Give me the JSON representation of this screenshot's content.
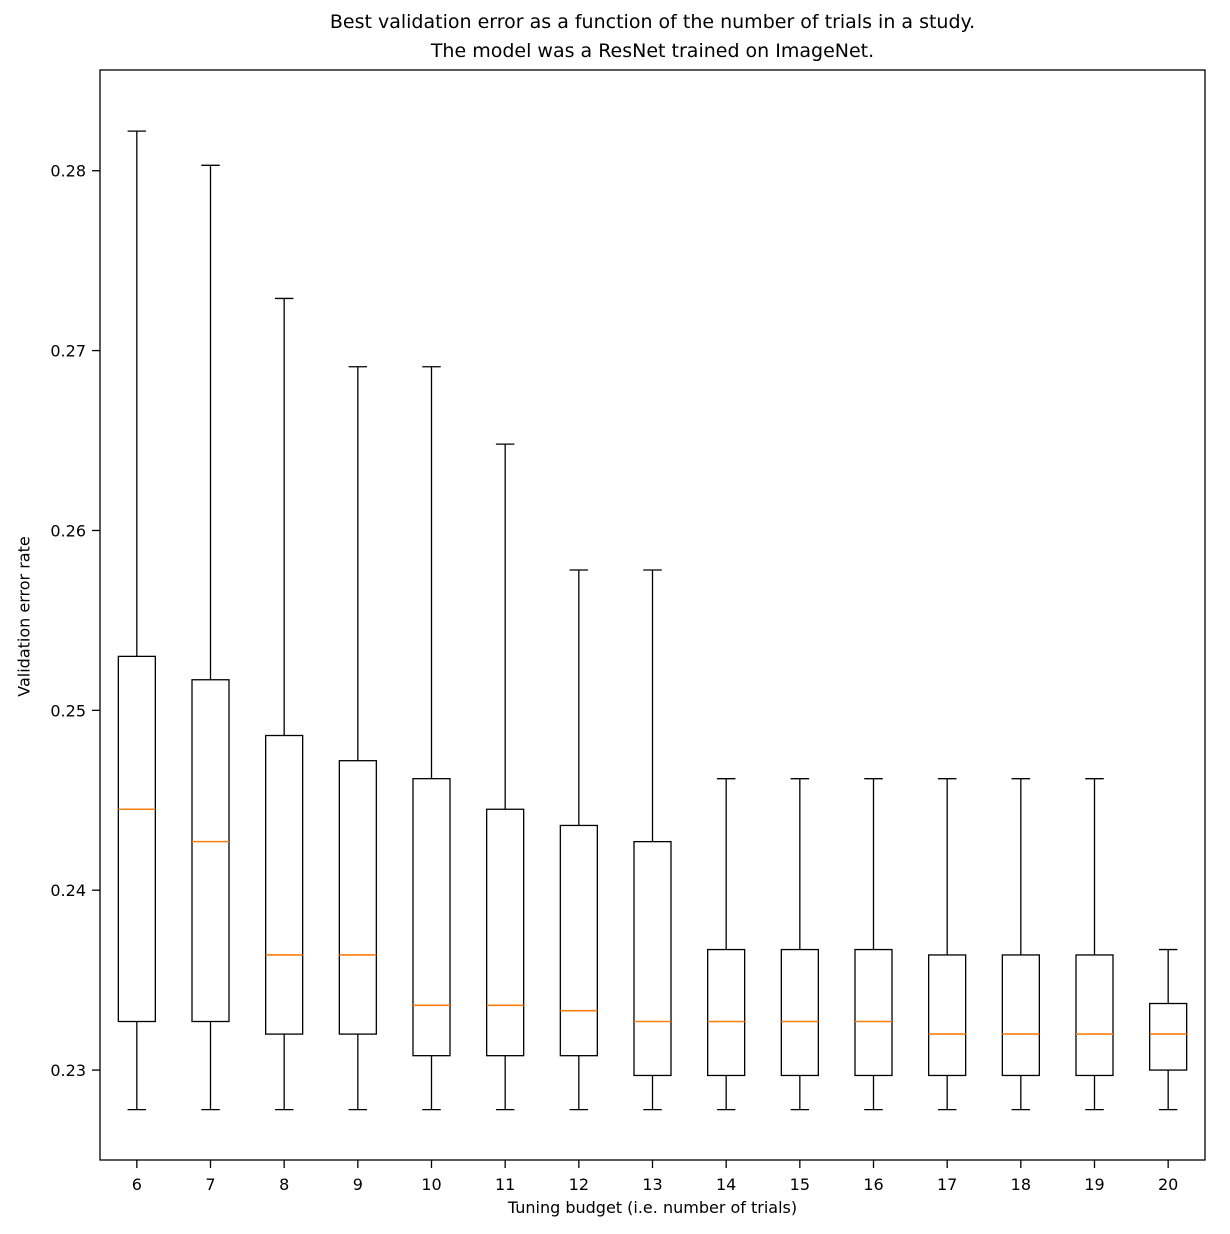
{
  "chart_data": {
    "type": "boxplot",
    "title": "Best validation error as a function of the number of trials in a study. The model was a ResNet trained on ImageNet.",
    "title_line1": "Best validation error as a function of the number of trials in a study.",
    "title_line2": "The model was a ResNet trained on ImageNet.",
    "xlabel": "Tuning budget (i.e. number of trials)",
    "ylabel": "Validation error rate",
    "categories": [
      "6",
      "7",
      "8",
      "9",
      "10",
      "11",
      "12",
      "13",
      "14",
      "15",
      "16",
      "17",
      "18",
      "19",
      "20"
    ],
    "yticks": [
      0.23,
      0.24,
      0.25,
      0.26,
      0.27,
      0.28
    ],
    "ylim": [
      0.225,
      0.2856
    ],
    "grid": false,
    "legend": "none",
    "box_edge_color": "#000000",
    "box_fill_color": "#ffffff",
    "median_color": "#ff7f0e",
    "boxes": [
      {
        "label": "6",
        "whislo": 0.2278,
        "q1": 0.2327,
        "med": 0.2445,
        "q3": 0.253,
        "whishi": 0.2822
      },
      {
        "label": "7",
        "whislo": 0.2278,
        "q1": 0.2327,
        "med": 0.2427,
        "q3": 0.2517,
        "whishi": 0.2803
      },
      {
        "label": "8",
        "whislo": 0.2278,
        "q1": 0.232,
        "med": 0.2364,
        "q3": 0.2486,
        "whishi": 0.2729
      },
      {
        "label": "9",
        "whislo": 0.2278,
        "q1": 0.232,
        "med": 0.2364,
        "q3": 0.2472,
        "whishi": 0.2691
      },
      {
        "label": "10",
        "whislo": 0.2278,
        "q1": 0.2308,
        "med": 0.2336,
        "q3": 0.2462,
        "whishi": 0.2691
      },
      {
        "label": "11",
        "whislo": 0.2278,
        "q1": 0.2308,
        "med": 0.2336,
        "q3": 0.2445,
        "whishi": 0.2648
      },
      {
        "label": "12",
        "whislo": 0.2278,
        "q1": 0.2308,
        "med": 0.2333,
        "q3": 0.2436,
        "whishi": 0.2578
      },
      {
        "label": "13",
        "whislo": 0.2278,
        "q1": 0.2297,
        "med": 0.2327,
        "q3": 0.2427,
        "whishi": 0.2578
      },
      {
        "label": "14",
        "whislo": 0.2278,
        "q1": 0.2297,
        "med": 0.2327,
        "q3": 0.2367,
        "whishi": 0.2462
      },
      {
        "label": "15",
        "whislo": 0.2278,
        "q1": 0.2297,
        "med": 0.2327,
        "q3": 0.2367,
        "whishi": 0.2462
      },
      {
        "label": "16",
        "whislo": 0.2278,
        "q1": 0.2297,
        "med": 0.2327,
        "q3": 0.2367,
        "whishi": 0.2462
      },
      {
        "label": "17",
        "whislo": 0.2278,
        "q1": 0.2297,
        "med": 0.232,
        "q3": 0.2364,
        "whishi": 0.2462
      },
      {
        "label": "18",
        "whislo": 0.2278,
        "q1": 0.2297,
        "med": 0.232,
        "q3": 0.2364,
        "whishi": 0.2462
      },
      {
        "label": "19",
        "whislo": 0.2278,
        "q1": 0.2297,
        "med": 0.232,
        "q3": 0.2364,
        "whishi": 0.2462
      },
      {
        "label": "20",
        "whislo": 0.2278,
        "q1": 0.23,
        "med": 0.232,
        "q3": 0.2337,
        "whishi": 0.2367
      }
    ]
  }
}
